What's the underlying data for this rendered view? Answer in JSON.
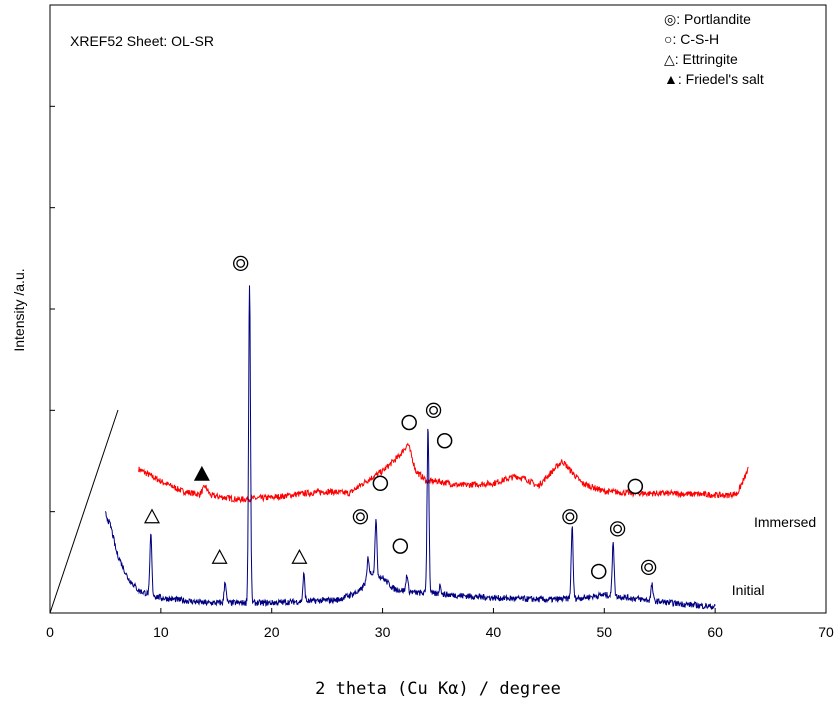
{
  "chart_data": {
    "type": "line",
    "title": "",
    "annotation": "XREF52 Sheet: OL-SR",
    "xlabel": "2 theta (Cu Kα) / degree",
    "ylabel": "Intensity /a.u.",
    "xlim": [
      0,
      70
    ],
    "xticks": [
      0,
      10,
      20,
      30,
      40,
      50,
      60,
      70
    ],
    "xtick_labels": [
      "0",
      "10",
      "20",
      "30",
      "40",
      "50",
      "60",
      "70"
    ],
    "ylim": [
      0,
      6
    ],
    "yticks": [
      0,
      1,
      2,
      3,
      4,
      5,
      6
    ],
    "ytick_labels_shown": false,
    "grid": false,
    "legend_position": "top-right",
    "legend": [
      {
        "symbol": "double-circle",
        "label": "◎: Portlandite"
      },
      {
        "symbol": "open-circle",
        "label": "○: C-S-H"
      },
      {
        "symbol": "open-triangle",
        "label": "△: Ettringite"
      },
      {
        "symbol": "filled-triangle",
        "label": "▲: Friedel's salt"
      }
    ],
    "series": [
      {
        "name": "Immersed",
        "color": "#ff0000",
        "x_range": [
          8,
          63
        ],
        "baseline": 1.25,
        "points": [
          [
            8,
            1.42
          ],
          [
            10,
            1.3
          ],
          [
            12,
            1.2
          ],
          [
            13.5,
            1.17
          ],
          [
            14,
            1.25
          ],
          [
            14.5,
            1.16
          ],
          [
            17,
            1.12
          ],
          [
            20,
            1.14
          ],
          [
            23,
            1.18
          ],
          [
            25,
            1.2
          ],
          [
            27,
            1.18
          ],
          [
            28.5,
            1.3
          ],
          [
            30,
            1.4
          ],
          [
            31.5,
            1.55
          ],
          [
            32.3,
            1.67
          ],
          [
            33,
            1.4
          ],
          [
            34,
            1.3
          ],
          [
            35,
            1.3
          ],
          [
            37,
            1.26
          ],
          [
            40,
            1.28
          ],
          [
            42,
            1.35
          ],
          [
            43,
            1.32
          ],
          [
            44,
            1.25
          ],
          [
            45.5,
            1.42
          ],
          [
            46.2,
            1.5
          ],
          [
            47,
            1.4
          ],
          [
            48,
            1.28
          ],
          [
            50,
            1.2
          ],
          [
            53,
            1.18
          ],
          [
            56,
            1.18
          ],
          [
            59,
            1.17
          ],
          [
            61,
            1.16
          ],
          [
            62,
            1.18
          ],
          [
            62.6,
            1.32
          ],
          [
            63,
            1.42
          ]
        ]
      },
      {
        "name": "Initial",
        "color": "#000080",
        "x_range": [
          5,
          60
        ],
        "baseline": 0.1,
        "points": [
          [
            5,
            0.98
          ],
          [
            5.5,
            0.85
          ],
          [
            6,
            0.6
          ],
          [
            7,
            0.35
          ],
          [
            8,
            0.22
          ],
          [
            10,
            0.15
          ],
          [
            14,
            0.1
          ],
          [
            20,
            0.1
          ],
          [
            26,
            0.13
          ],
          [
            28,
            0.22
          ],
          [
            29,
            0.4
          ],
          [
            30,
            0.35
          ],
          [
            31,
            0.24
          ],
          [
            33,
            0.2
          ],
          [
            36,
            0.18
          ],
          [
            40,
            0.15
          ],
          [
            45,
            0.13
          ],
          [
            48,
            0.15
          ],
          [
            50,
            0.18
          ],
          [
            53,
            0.14
          ],
          [
            56,
            0.1
          ],
          [
            60,
            0.06
          ]
        ],
        "peaks": [
          [
            9.1,
            0.78
          ],
          [
            15.8,
            0.32
          ],
          [
            18.0,
            3.25
          ],
          [
            22.9,
            0.38
          ],
          [
            28.7,
            0.55
          ],
          [
            29.4,
            0.92
          ],
          [
            32.2,
            0.38
          ],
          [
            34.1,
            1.85
          ],
          [
            35.2,
            0.28
          ],
          [
            47.1,
            0.85
          ],
          [
            50.8,
            0.72
          ],
          [
            54.3,
            0.28
          ]
        ]
      }
    ],
    "curve_labels": [
      {
        "text": "Immersed",
        "x": 63.5,
        "y": 0.85
      },
      {
        "text": "Initial",
        "x": 61.5,
        "y": 0.18
      }
    ],
    "phase_markers": [
      {
        "phase": "Portlandite",
        "symbol": "double-circle",
        "x": 17.2,
        "y": 3.45
      },
      {
        "phase": "Portlandite",
        "symbol": "double-circle",
        "x": 28.0,
        "y": 0.95
      },
      {
        "phase": "Portlandite",
        "symbol": "double-circle",
        "x": 34.6,
        "y": 2.0
      },
      {
        "phase": "Portlandite",
        "symbol": "double-circle",
        "x": 46.9,
        "y": 0.95
      },
      {
        "phase": "Portlandite",
        "symbol": "double-circle",
        "x": 51.2,
        "y": 0.83
      },
      {
        "phase": "Portlandite",
        "symbol": "double-circle",
        "x": 54.0,
        "y": 0.45
      },
      {
        "phase": "C-S-H",
        "symbol": "open-circle",
        "x": 29.8,
        "y": 1.28
      },
      {
        "phase": "C-S-H",
        "symbol": "open-circle",
        "x": 31.6,
        "y": 0.66
      },
      {
        "phase": "C-S-H",
        "symbol": "open-circle",
        "x": 32.4,
        "y": 1.88
      },
      {
        "phase": "C-S-H",
        "symbol": "open-circle",
        "x": 35.6,
        "y": 1.7
      },
      {
        "phase": "C-S-H",
        "symbol": "open-circle",
        "x": 49.5,
        "y": 0.41
      },
      {
        "phase": "C-S-H",
        "symbol": "open-circle",
        "x": 52.8,
        "y": 1.25
      },
      {
        "phase": "Ettringite",
        "symbol": "open-triangle",
        "x": 9.2,
        "y": 0.95
      },
      {
        "phase": "Ettringite",
        "symbol": "open-triangle",
        "x": 15.3,
        "y": 0.55
      },
      {
        "phase": "Ettringite",
        "symbol": "open-triangle",
        "x": 22.5,
        "y": 0.55
      },
      {
        "phase": "Friedel's salt",
        "symbol": "filled-triangle",
        "x": 13.7,
        "y": 1.37
      }
    ]
  }
}
